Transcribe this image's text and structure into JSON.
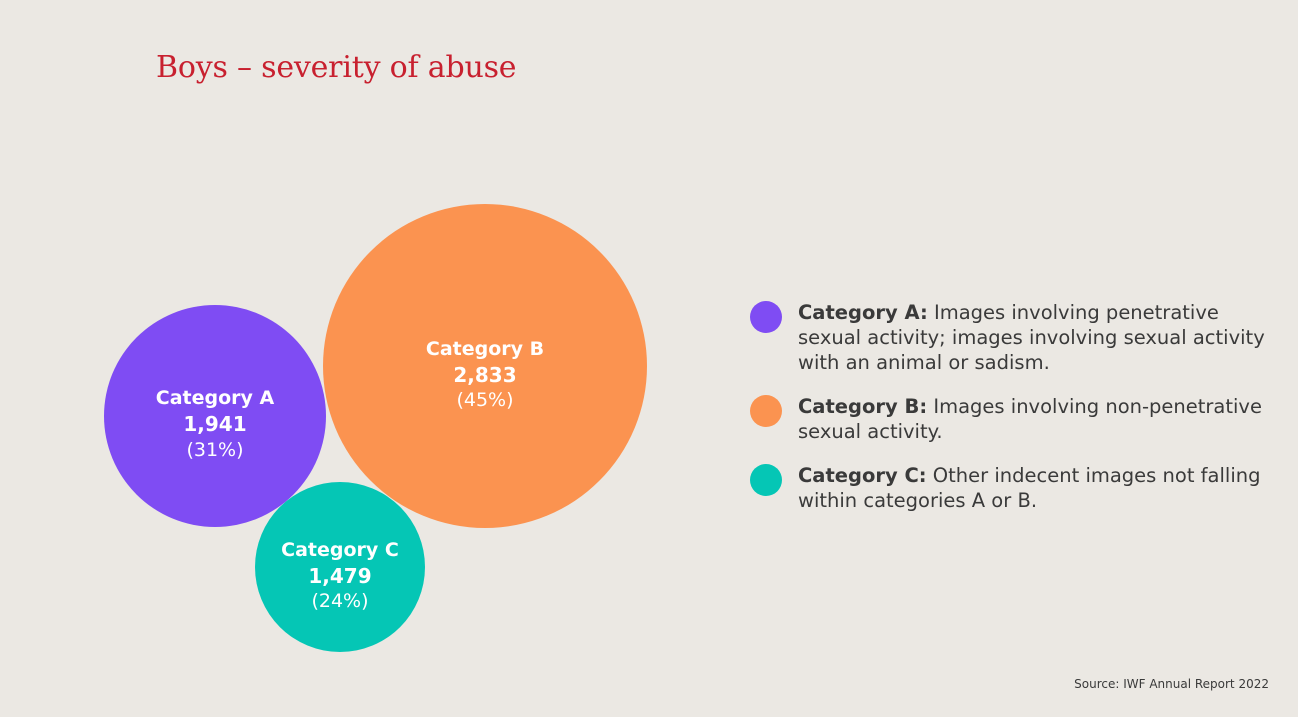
{
  "title": "Boys – severity of abuse",
  "source": "Source: IWF Annual Report 2022",
  "colors": {
    "background": "#ebe8e3",
    "title": "#c8202f",
    "category_a": "#7f4cf3",
    "category_b": "#fb9350",
    "category_c": "#05c6b5"
  },
  "chart_data": {
    "type": "bubble",
    "title": "Boys – severity of abuse",
    "series": [
      {
        "name": "Category A",
        "value": 1941,
        "value_label": "1,941",
        "percent": 31,
        "percent_label": "(31%)",
        "color": "#7f4cf3"
      },
      {
        "name": "Category B",
        "value": 2833,
        "value_label": "2,833",
        "percent": 45,
        "percent_label": "(45%)",
        "color": "#fb9350"
      },
      {
        "name": "Category C",
        "value": 1479,
        "value_label": "1,479",
        "percent": 24,
        "percent_label": "(24%)",
        "color": "#05c6b5"
      }
    ],
    "legend": "right"
  },
  "legend": [
    {
      "label": "Category A:",
      "description": " Images involving penetrative sexual activity; images involving sexual activity with an animal or sadism.",
      "color": "#7f4cf3"
    },
    {
      "label": "Category B:",
      "description": " Images involving non-penetrative sexual activity.",
      "color": "#fb9350"
    },
    {
      "label": "Category C:",
      "description": " Other indecent images not falling within categories A or B.",
      "color": "#05c6b5"
    }
  ]
}
